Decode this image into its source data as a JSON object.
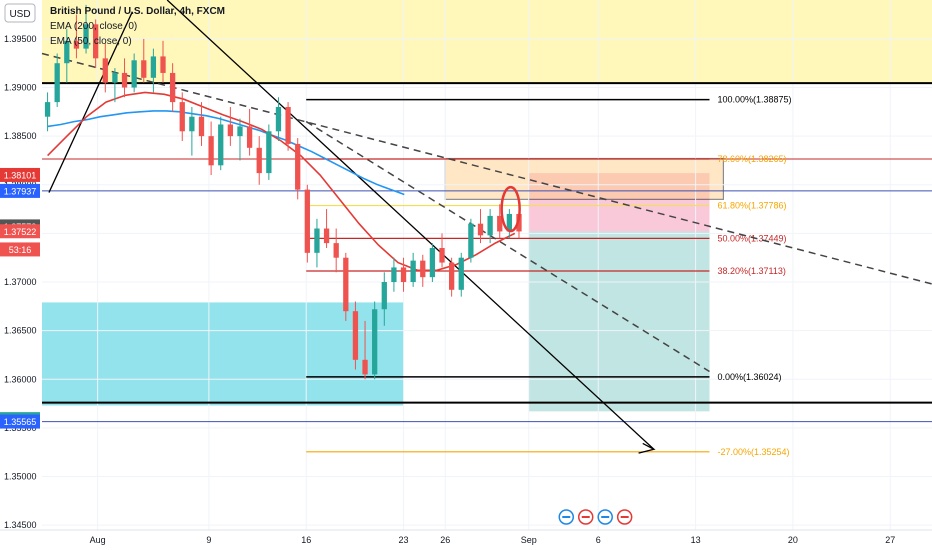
{
  "header": {
    "symbol_title": "British Pound / U.S. Dollar, 4h, FXCM",
    "indicators": [
      "EMA (200, close, 0)",
      "EMA (50, close, 0)"
    ],
    "currency": "USD"
  },
  "colors": {
    "up": "#26a69a",
    "down": "#ef5350",
    "ema200": "#2196f3",
    "ema50": "#e53935",
    "supply_zone": "#fff59d",
    "demand_zone": "#80deea",
    "fib_label": "#f7a600",
    "trendline": "#000000",
    "dashed": "#444444",
    "short_stop": "#f8bbd0",
    "short_target": "#b2dfdb"
  },
  "chart_data": {
    "type": "candlestick",
    "ylim": [
      1.3445,
      1.399
    ],
    "y_ticks": [
      "1.39500",
      "1.39000",
      "1.38500",
      "1.38000",
      "1.37500",
      "1.37000",
      "1.36500",
      "1.36000",
      "1.35500",
      "1.35000",
      "1.34500"
    ],
    "x_tick_labels": [
      {
        "label": "Aug",
        "day": 0
      },
      {
        "label": "9",
        "day": 8
      },
      {
        "label": "16",
        "day": 15
      },
      {
        "label": "23",
        "day": 22
      },
      {
        "label": "26",
        "day": 25
      },
      {
        "label": "Sep",
        "day": 31
      },
      {
        "label": "6",
        "day": 36
      },
      {
        "label": "13",
        "day": 43
      },
      {
        "label": "20",
        "day": 50
      },
      {
        "label": "27",
        "day": 57
      }
    ],
    "x_day_range": [
      -4,
      60
    ],
    "price_badges": [
      {
        "value": "1.38101",
        "price": 1.38101,
        "color": "#e53935"
      },
      {
        "value": "1.37937",
        "price": 1.37937,
        "color": "#2962ff"
      },
      {
        "value": "1.37572",
        "price": 1.37572,
        "color": "#555555"
      },
      {
        "value": "1.37522",
        "price": 1.37522,
        "color": "#ef5350"
      },
      {
        "value": "53:16",
        "price": 1.37335,
        "color": "#ef5350"
      },
      {
        "value": "1.35590",
        "price": 1.3559,
        "color": "#26a69a"
      },
      {
        "value": "1.35565",
        "price": 1.35565,
        "color": "#2962ff"
      }
    ],
    "fib_levels": [
      {
        "label": "100.00%(1.38875)",
        "price": 1.38875,
        "color": "#000000",
        "label_color": "#000000"
      },
      {
        "label": "78.60%(1.38265)",
        "price": 1.38265,
        "color": "#c62828",
        "label_color": "#f7a600"
      },
      {
        "label": "61.80%(1.37786)",
        "price": 1.37786,
        "color": "#f4e04d",
        "label_color": "#f7a600"
      },
      {
        "label": "50.00%(1.37449)",
        "price": 1.37449,
        "color": "#c62828",
        "label_color": "#c62828"
      },
      {
        "label": "38.20%(1.37113)",
        "price": 1.37113,
        "color": "#c62828",
        "label_color": "#c62828"
      },
      {
        "label": "0.00%(1.36024)",
        "price": 1.36024,
        "color": "#000000",
        "label_color": "#000000"
      },
      {
        "label": "-27.00%(1.35254)",
        "price": 1.35254,
        "color": "#f7a600",
        "label_color": "#f7a600"
      }
    ],
    "horizontal_lines": [
      {
        "price": 1.39045,
        "color": "#000000",
        "width": 2
      },
      {
        "price": 1.38265,
        "color": "#c62828",
        "width": 1
      },
      {
        "price": 1.37937,
        "color": "#3f51b5",
        "width": 1
      },
      {
        "price": 1.3576,
        "color": "#000000",
        "width": 2
      },
      {
        "price": 1.35565,
        "color": "#3f51b5",
        "width": 1
      }
    ],
    "candles": [
      [
        1.387,
        1.3895,
        1.3855,
        1.3885
      ],
      [
        1.3885,
        1.3935,
        1.388,
        1.3925
      ],
      [
        1.3925,
        1.396,
        1.3905,
        1.3948
      ],
      [
        1.3948,
        1.3975,
        1.393,
        1.394
      ],
      [
        1.394,
        1.3985,
        1.3935,
        1.3965
      ],
      [
        1.3965,
        1.397,
        1.392,
        1.393
      ],
      [
        1.393,
        1.3945,
        1.3895,
        1.3905
      ],
      [
        1.3905,
        1.392,
        1.3885,
        1.3915
      ],
      [
        1.3915,
        1.393,
        1.389,
        1.39
      ],
      [
        1.39,
        1.3935,
        1.3895,
        1.3928
      ],
      [
        1.3928,
        1.395,
        1.3905,
        1.391
      ],
      [
        1.391,
        1.394,
        1.3895,
        1.3932
      ],
      [
        1.3932,
        1.3948,
        1.3905,
        1.3915
      ],
      [
        1.3915,
        1.3925,
        1.3875,
        1.3885
      ],
      [
        1.3885,
        1.3895,
        1.3845,
        1.3855
      ],
      [
        1.3855,
        1.388,
        1.383,
        1.387
      ],
      [
        1.387,
        1.3885,
        1.384,
        1.385
      ],
      [
        1.385,
        1.3865,
        1.381,
        1.382
      ],
      [
        1.382,
        1.387,
        1.3815,
        1.3862
      ],
      [
        1.3862,
        1.388,
        1.384,
        1.385
      ],
      [
        1.385,
        1.3868,
        1.3825,
        1.386
      ],
      [
        1.386,
        1.3878,
        1.383,
        1.3838
      ],
      [
        1.3838,
        1.385,
        1.38,
        1.3812
      ],
      [
        1.3812,
        1.3862,
        1.3805,
        1.3855
      ],
      [
        1.3855,
        1.389,
        1.3845,
        1.388
      ],
      [
        1.388,
        1.3885,
        1.3835,
        1.3842
      ],
      [
        1.3842,
        1.3848,
        1.3785,
        1.3795
      ],
      [
        1.3795,
        1.38,
        1.372,
        1.373
      ],
      [
        1.373,
        1.3765,
        1.3715,
        1.3755
      ],
      [
        1.3755,
        1.3775,
        1.3735,
        1.374
      ],
      [
        1.374,
        1.3755,
        1.371,
        1.3725
      ],
      [
        1.3725,
        1.373,
        1.366,
        1.367
      ],
      [
        1.367,
        1.368,
        1.361,
        1.362
      ],
      [
        1.362,
        1.366,
        1.36,
        1.3605
      ],
      [
        1.3605,
        1.368,
        1.36,
        1.3672
      ],
      [
        1.3672,
        1.371,
        1.3655,
        1.37
      ],
      [
        1.37,
        1.3725,
        1.369,
        1.3715
      ],
      [
        1.3715,
        1.3725,
        1.369,
        1.37
      ],
      [
        1.37,
        1.373,
        1.3695,
        1.3722
      ],
      [
        1.3722,
        1.3728,
        1.3695,
        1.3705
      ],
      [
        1.3705,
        1.374,
        1.37,
        1.3735
      ],
      [
        1.3735,
        1.375,
        1.3715,
        1.372
      ],
      [
        1.372,
        1.3725,
        1.3685,
        1.3692
      ],
      [
        1.3692,
        1.373,
        1.3685,
        1.3725
      ],
      [
        1.3725,
        1.3765,
        1.372,
        1.376
      ],
      [
        1.376,
        1.3775,
        1.374,
        1.3748
      ],
      [
        1.3748,
        1.3775,
        1.374,
        1.3768
      ],
      [
        1.3768,
        1.378,
        1.3745,
        1.3752
      ],
      [
        1.3752,
        1.3775,
        1.3745,
        1.377
      ],
      [
        1.377,
        1.3785,
        1.3745,
        1.3752
      ]
    ],
    "ema200": [
      1.386,
      1.3862,
      1.3865,
      1.3867,
      1.387,
      1.3872,
      1.3874,
      1.3875,
      1.3876,
      1.3876,
      1.3875,
      1.3873,
      1.3871,
      1.3868,
      1.3864,
      1.386,
      1.3856,
      1.3851,
      1.3846,
      1.384,
      1.3834,
      1.3827,
      1.382,
      1.3813,
      1.3806,
      1.38,
      1.3795,
      1.379
    ],
    "ema50": [
      1.383,
      1.385,
      1.387,
      1.3885,
      1.3892,
      1.3895,
      1.3893,
      1.3888,
      1.388,
      1.3872,
      1.3865,
      1.3857,
      1.3845,
      1.383,
      1.381,
      1.3785,
      1.376,
      1.3738,
      1.372,
      1.3712,
      1.3712,
      1.3718,
      1.3728,
      1.374,
      1.375
    ]
  },
  "legend_position": "top-left"
}
